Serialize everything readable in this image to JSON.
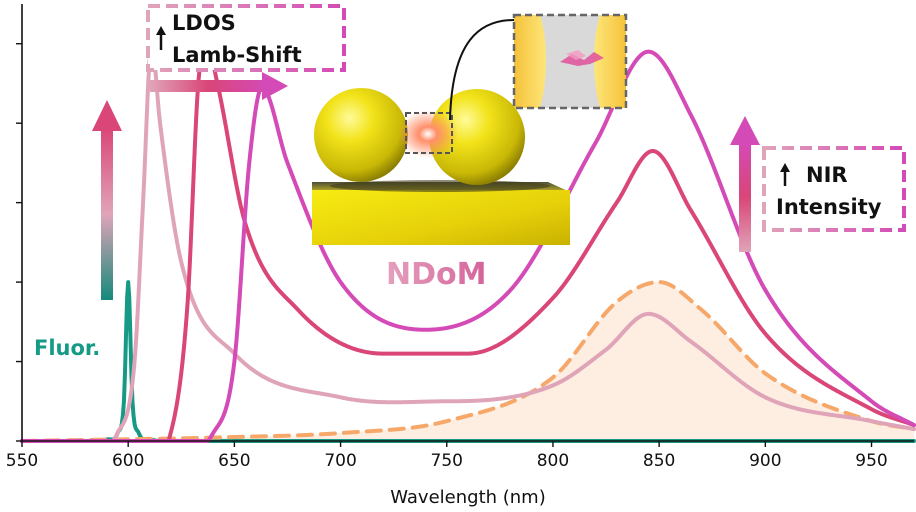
{
  "chart_data": {
    "type": "line",
    "xlabel": "Wavelength (nm)",
    "ylabel": "",
    "xlim": [
      550,
      970
    ],
    "ylim": [
      0,
      1.1
    ],
    "xticks": [
      550,
      600,
      650,
      700,
      750,
      800,
      850,
      900,
      950
    ],
    "grid": false,
    "series": [
      {
        "role": "fluorophore",
        "color": "#169a86",
        "style": "solid",
        "points": [
          [
            550,
            0.0
          ],
          [
            590,
            0.004
          ],
          [
            595,
            0.02
          ],
          [
            598,
            0.1
          ],
          [
            600,
            0.4
          ],
          [
            602,
            0.1
          ],
          [
            605,
            0.02
          ],
          [
            610,
            0.005
          ],
          [
            630,
            0.0
          ],
          [
            970,
            0.0
          ]
        ]
      },
      {
        "role": "cavity",
        "color": "#f6a86b",
        "style": "dashed",
        "filled": true,
        "points": [
          [
            550,
            0.0
          ],
          [
            650,
            0.01
          ],
          [
            700,
            0.02
          ],
          [
            750,
            0.05
          ],
          [
            800,
            0.16
          ],
          [
            830,
            0.35
          ],
          [
            850,
            0.4
          ],
          [
            870,
            0.33
          ],
          [
            900,
            0.17
          ],
          [
            950,
            0.05
          ],
          [
            970,
            0.03
          ]
        ]
      },
      {
        "role": "coupled-1",
        "color": "#e0a4b9",
        "style": "solid",
        "points": [
          [
            550,
            0.0
          ],
          [
            595,
            0.02
          ],
          [
            603,
            0.2
          ],
          [
            607,
            0.6
          ],
          [
            611,
            1.0
          ],
          [
            615,
            0.8
          ],
          [
            625,
            0.45
          ],
          [
            650,
            0.22
          ],
          [
            700,
            0.11
          ],
          [
            750,
            0.1
          ],
          [
            800,
            0.14
          ],
          [
            825,
            0.23
          ],
          [
            845,
            0.32
          ],
          [
            865,
            0.25
          ],
          [
            900,
            0.11
          ],
          [
            950,
            0.05
          ],
          [
            970,
            0.03
          ]
        ]
      },
      {
        "role": "coupled-2",
        "color": "#d94677",
        "style": "solid",
        "points": [
          [
            550,
            0.0
          ],
          [
            620,
            0.02
          ],
          [
            628,
            0.35
          ],
          [
            633,
            0.9
          ],
          [
            637,
            1.0
          ],
          [
            642,
            0.9
          ],
          [
            655,
            0.55
          ],
          [
            680,
            0.33
          ],
          [
            720,
            0.22
          ],
          [
            760,
            0.22
          ],
          [
            800,
            0.36
          ],
          [
            830,
            0.6
          ],
          [
            847,
            0.73
          ],
          [
            865,
            0.58
          ],
          [
            900,
            0.27
          ],
          [
            950,
            0.08
          ],
          [
            970,
            0.04
          ]
        ]
      },
      {
        "role": "coupled-3",
        "color": "#d44ab6",
        "style": "solid",
        "points": [
          [
            550,
            0.0
          ],
          [
            640,
            0.02
          ],
          [
            650,
            0.2
          ],
          [
            657,
            0.7
          ],
          [
            663,
            0.89
          ],
          [
            675,
            0.7
          ],
          [
            700,
            0.4
          ],
          [
            740,
            0.28
          ],
          [
            780,
            0.38
          ],
          [
            820,
            0.75
          ],
          [
            845,
            0.98
          ],
          [
            865,
            0.82
          ],
          [
            900,
            0.38
          ],
          [
            950,
            0.1
          ],
          [
            970,
            0.04
          ]
        ]
      }
    ],
    "legend": "none"
  },
  "annotations": {
    "fluor_label": "Fluor.",
    "ldos_label": "LDOS",
    "lamb_shift_label": "Lamb-Shift",
    "ndom_label": "NDoM",
    "nir_label": "NIR",
    "intensity_label": "Intensity"
  },
  "colors": {
    "teal": "#169a86",
    "pink_light": "#e0a4b9",
    "pink": "#d94677",
    "magenta": "#d44ab6",
    "orange": "#f6a86b",
    "gold": "#e8d20a"
  },
  "icons": [
    "up-arrow-icon",
    "right-arrow-icon",
    "nanoparticle-dimer-illustration",
    "gap-zoom-inset"
  ]
}
